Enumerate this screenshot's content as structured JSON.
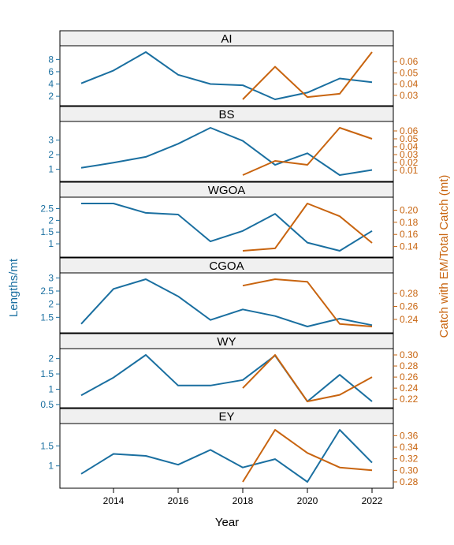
{
  "chart_data": {
    "type": "line",
    "xlabel": "Year",
    "ylabel_left": "Lengths/mt",
    "ylabel_right": "Catch with EM/Total Catch (mt)",
    "xlim": [
      2012.5,
      2022.5
    ],
    "x_ticks": [
      2014,
      2016,
      2018,
      2020,
      2022
    ],
    "colors": {
      "left": "#1a6fa0",
      "right": "#c8640f",
      "strip": "#f0f0f0",
      "frame": "#000000"
    },
    "panels": [
      {
        "name": "AI",
        "left_ylim": [
          1.5,
          9.2
        ],
        "left_ticks": [
          2,
          4,
          6,
          8
        ],
        "right_ylim": [
          0.0265,
          0.0685
        ],
        "right_ticks": [
          0.03,
          0.04,
          0.05,
          0.06
        ],
        "right_tick_labels": [
          "0.03",
          "0.04",
          "0.05",
          "0.06"
        ],
        "left_series": {
          "x": [
            2013,
            2014,
            2015,
            2016,
            2017,
            2018,
            2019,
            2020,
            2021,
            2022
          ],
          "y": [
            4.1,
            6.2,
            9.2,
            5.5,
            4.0,
            3.8,
            1.5,
            2.6,
            4.9,
            4.3
          ]
        },
        "right_series": {
          "x": [
            2018,
            2019,
            2020,
            2021,
            2022
          ],
          "y": [
            0.0265,
            0.0555,
            0.0285,
            0.0315,
            0.0685
          ]
        }
      },
      {
        "name": "BS",
        "left_ylim": [
          0.6,
          3.85
        ],
        "left_ticks": [
          1,
          2,
          3
        ],
        "right_ylim": [
          0.004,
          0.064
        ],
        "right_ticks": [
          0.01,
          0.02,
          0.03,
          0.04,
          0.05,
          0.06
        ],
        "right_tick_labels": [
          "0.01",
          "0.02",
          "0.03",
          "0.04",
          "0.05",
          "0.06"
        ],
        "left_series": {
          "x": [
            2013,
            2014,
            2015,
            2016,
            2017,
            2018,
            2019,
            2020,
            2021,
            2022
          ],
          "y": [
            1.1,
            1.45,
            1.85,
            2.75,
            3.85,
            2.95,
            1.3,
            2.1,
            0.6,
            0.95
          ]
        },
        "right_series": {
          "x": [
            2018,
            2019,
            2020,
            2021,
            2022
          ],
          "y": [
            0.004,
            0.022,
            0.017,
            0.064,
            0.05
          ]
        }
      },
      {
        "name": "WGOA",
        "left_ylim": [
          0.7,
          2.72
        ],
        "left_ticks": [
          1.0,
          1.5,
          2.0,
          2.5
        ],
        "right_ylim": [
          0.133,
          0.211
        ],
        "right_ticks": [
          0.14,
          0.16,
          0.18,
          0.2
        ],
        "right_tick_labels": [
          "0.14",
          "0.16",
          "0.18",
          "0.20"
        ],
        "left_series": {
          "x": [
            2013,
            2014,
            2015,
            2016,
            2017,
            2018,
            2019,
            2020,
            2021,
            2022
          ],
          "y": [
            2.72,
            2.72,
            2.32,
            2.25,
            1.1,
            1.55,
            2.28,
            1.05,
            0.7,
            1.55
          ]
        },
        "right_series": {
          "x": [
            2018,
            2019,
            2020,
            2021,
            2022
          ],
          "y": [
            0.133,
            0.137,
            0.211,
            0.19,
            0.146
          ]
        }
      },
      {
        "name": "CGOA",
        "left_ylim": [
          1.15,
          2.95
        ],
        "left_ticks": [
          1.5,
          2.0,
          2.5,
          3.0
        ],
        "right_ylim": [
          0.229,
          0.302
        ],
        "right_ticks": [
          0.24,
          0.26,
          0.28
        ],
        "right_tick_labels": [
          "0.24",
          "0.26",
          "0.28"
        ],
        "left_series": {
          "x": [
            2013,
            2014,
            2015,
            2016,
            2017,
            2018,
            2019,
            2020,
            2021,
            2022
          ],
          "y": [
            1.25,
            2.58,
            2.95,
            2.3,
            1.4,
            1.8,
            1.55,
            1.15,
            1.45,
            1.2
          ]
        },
        "right_series": {
          "x": [
            2018,
            2019,
            2020,
            2021,
            2022
          ],
          "y": [
            0.292,
            0.302,
            0.298,
            0.233,
            0.229
          ]
        }
      },
      {
        "name": "WY",
        "left_ylim": [
          0.6,
          2.12
        ],
        "left_ticks": [
          0.5,
          1.0,
          1.5,
          2.0
        ],
        "right_ylim": [
          0.216,
          0.3
        ],
        "right_ticks": [
          0.22,
          0.24,
          0.26,
          0.28,
          0.3
        ],
        "right_tick_labels": [
          "0.22",
          "0.24",
          "0.26",
          "0.28",
          "0.30"
        ],
        "left_series": {
          "x": [
            2013,
            2014,
            2015,
            2016,
            2017,
            2018,
            2019,
            2020,
            2021,
            2022
          ],
          "y": [
            0.8,
            1.38,
            2.12,
            1.12,
            1.12,
            1.3,
            2.1,
            0.6,
            1.47,
            0.6
          ]
        },
        "right_series": {
          "x": [
            2018,
            2019,
            2020,
            2021,
            2022
          ],
          "y": [
            0.24,
            0.3,
            0.216,
            0.228,
            0.26
          ]
        }
      },
      {
        "name": "EY",
        "left_ylim": [
          0.6,
          1.9
        ],
        "left_ticks": [
          1.0,
          1.5
        ],
        "right_ylim": [
          0.28,
          0.37
        ],
        "right_ticks": [
          0.28,
          0.3,
          0.32,
          0.34,
          0.36
        ],
        "right_tick_labels": [
          "0.28",
          "0.30",
          "0.32",
          "0.34",
          "0.36"
        ],
        "left_series": {
          "x": [
            2013,
            2014,
            2015,
            2016,
            2017,
            2018,
            2019,
            2020,
            2021,
            2022
          ],
          "y": [
            0.8,
            1.3,
            1.25,
            1.03,
            1.4,
            0.96,
            1.17,
            0.6,
            1.9,
            1.08
          ]
        },
        "right_series": {
          "x": [
            2018,
            2019,
            2020,
            2021,
            2022
          ],
          "y": [
            0.28,
            0.37,
            0.33,
            0.305,
            0.3
          ]
        }
      }
    ]
  }
}
